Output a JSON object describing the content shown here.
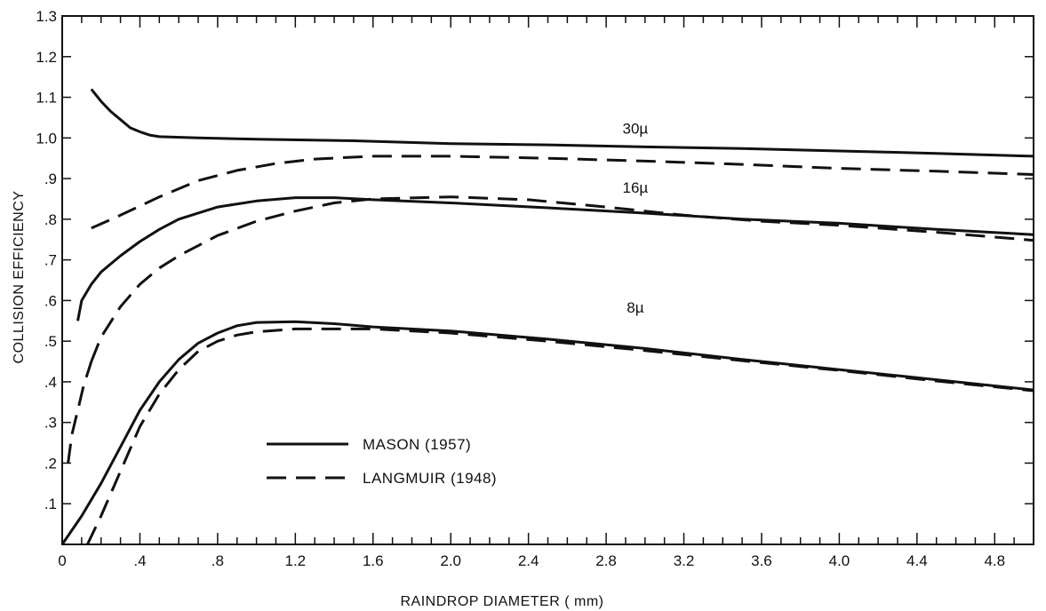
{
  "chart_data": {
    "type": "line",
    "title": "",
    "xlabel": "RAINDROP   DIAMETER  ( mm)",
    "ylabel": "COLLISION   EFFICIENCY",
    "xlim": [
      0,
      5.0
    ],
    "ylim": [
      0,
      1.3
    ],
    "x_tick_labels": [
      "0",
      ".4",
      ".8",
      "1.2",
      "1.6",
      "2.0",
      "2.4",
      "2.8",
      "3.2",
      "3.6",
      "4.0",
      "4.4",
      "4.8"
    ],
    "y_tick_labels": [
      "",
      ".1",
      ".2",
      ".3",
      ".4",
      ".5",
      ".6",
      ".7",
      ".8",
      ".9",
      "1.0",
      "1.1",
      "1.2",
      "1.3"
    ],
    "grid": false,
    "legend_position": "bottom-left",
    "legend": [
      {
        "label": "MASON  (1957)",
        "style": "solid"
      },
      {
        "label": "LANGMUIR  (1948)",
        "style": "dashed"
      }
    ],
    "series": [
      {
        "group": "30µ",
        "style": "solid",
        "points": [
          [
            0.15,
            1.12
          ],
          [
            0.2,
            1.09
          ],
          [
            0.25,
            1.065
          ],
          [
            0.3,
            1.045
          ],
          [
            0.35,
            1.025
          ],
          [
            0.4,
            1.015
          ],
          [
            0.45,
            1.007
          ],
          [
            0.5,
            1.003
          ],
          [
            0.7,
            1.0
          ],
          [
            1.0,
            0.997
          ],
          [
            1.5,
            0.993
          ],
          [
            2.0,
            0.986
          ],
          [
            2.5,
            0.983
          ],
          [
            3.0,
            0.978
          ],
          [
            3.5,
            0.974
          ],
          [
            4.0,
            0.968
          ],
          [
            4.5,
            0.962
          ],
          [
            5.0,
            0.955
          ]
        ]
      },
      {
        "group": "30µ",
        "style": "dashed",
        "points": [
          [
            0.15,
            0.778
          ],
          [
            0.3,
            0.81
          ],
          [
            0.5,
            0.855
          ],
          [
            0.7,
            0.895
          ],
          [
            0.9,
            0.92
          ],
          [
            1.1,
            0.937
          ],
          [
            1.3,
            0.948
          ],
          [
            1.6,
            0.955
          ],
          [
            2.0,
            0.955
          ],
          [
            2.5,
            0.95
          ],
          [
            3.0,
            0.943
          ],
          [
            3.5,
            0.935
          ],
          [
            4.0,
            0.925
          ],
          [
            4.5,
            0.918
          ],
          [
            5.0,
            0.91
          ]
        ]
      },
      {
        "group": "16µ",
        "style": "solid",
        "points": [
          [
            0.08,
            0.55
          ],
          [
            0.1,
            0.6
          ],
          [
            0.15,
            0.64
          ],
          [
            0.2,
            0.67
          ],
          [
            0.3,
            0.71
          ],
          [
            0.4,
            0.745
          ],
          [
            0.5,
            0.775
          ],
          [
            0.6,
            0.8
          ],
          [
            0.8,
            0.83
          ],
          [
            1.0,
            0.845
          ],
          [
            1.2,
            0.853
          ],
          [
            1.4,
            0.853
          ],
          [
            1.6,
            0.848
          ],
          [
            2.0,
            0.84
          ],
          [
            2.5,
            0.828
          ],
          [
            3.0,
            0.815
          ],
          [
            3.5,
            0.8
          ],
          [
            4.0,
            0.79
          ],
          [
            4.5,
            0.775
          ],
          [
            5.0,
            0.762
          ]
        ]
      },
      {
        "group": "16µ",
        "style": "dashed",
        "points": [
          [
            0.15,
            0.45
          ],
          [
            0.2,
            0.51
          ],
          [
            0.3,
            0.585
          ],
          [
            0.4,
            0.64
          ],
          [
            0.5,
            0.68
          ],
          [
            0.6,
            0.71
          ],
          [
            0.8,
            0.76
          ],
          [
            1.0,
            0.795
          ],
          [
            1.2,
            0.82
          ],
          [
            1.4,
            0.84
          ],
          [
            1.6,
            0.85
          ],
          [
            2.0,
            0.855
          ],
          [
            2.4,
            0.848
          ],
          [
            2.8,
            0.83
          ],
          [
            3.2,
            0.81
          ],
          [
            3.6,
            0.795
          ],
          [
            4.0,
            0.785
          ],
          [
            4.5,
            0.768
          ],
          [
            5.0,
            0.748
          ]
        ]
      },
      {
        "group": "16µ",
        "style": "dashed",
        "points": [
          [
            0.03,
            0.2
          ],
          [
            0.05,
            0.27
          ],
          [
            0.07,
            0.31
          ],
          [
            0.09,
            0.35
          ],
          [
            0.11,
            0.39
          ],
          [
            0.13,
            0.42
          ],
          [
            0.15,
            0.45
          ]
        ]
      },
      {
        "group": "8µ",
        "style": "solid",
        "points": [
          [
            0.0,
            0.0
          ],
          [
            0.1,
            0.07
          ],
          [
            0.2,
            0.15
          ],
          [
            0.3,
            0.24
          ],
          [
            0.4,
            0.33
          ],
          [
            0.5,
            0.4
          ],
          [
            0.6,
            0.455
          ],
          [
            0.7,
            0.495
          ],
          [
            0.8,
            0.52
          ],
          [
            0.9,
            0.538
          ],
          [
            1.0,
            0.546
          ],
          [
            1.2,
            0.548
          ],
          [
            1.4,
            0.543
          ],
          [
            1.6,
            0.535
          ],
          [
            2.0,
            0.525
          ],
          [
            2.5,
            0.505
          ],
          [
            3.0,
            0.482
          ],
          [
            3.5,
            0.455
          ],
          [
            4.0,
            0.43
          ],
          [
            4.5,
            0.405
          ],
          [
            5.0,
            0.38
          ]
        ]
      },
      {
        "group": "8µ",
        "style": "dashed",
        "points": [
          [
            0.13,
            0.0
          ],
          [
            0.2,
            0.07
          ],
          [
            0.3,
            0.18
          ],
          [
            0.4,
            0.29
          ],
          [
            0.5,
            0.37
          ],
          [
            0.6,
            0.43
          ],
          [
            0.7,
            0.475
          ],
          [
            0.8,
            0.5
          ],
          [
            0.9,
            0.515
          ],
          [
            1.0,
            0.523
          ],
          [
            1.2,
            0.53
          ],
          [
            1.4,
            0.53
          ],
          [
            1.6,
            0.53
          ],
          [
            2.0,
            0.52
          ],
          [
            2.5,
            0.5
          ],
          [
            3.0,
            0.477
          ],
          [
            3.5,
            0.452
          ],
          [
            4.0,
            0.428
          ],
          [
            4.5,
            0.402
          ],
          [
            5.0,
            0.378
          ]
        ]
      }
    ],
    "annotations": [
      {
        "text": "30µ",
        "x": 2.95,
        "y": 1.01
      },
      {
        "text": "16µ",
        "x": 2.95,
        "y": 0.865
      },
      {
        "text": "8µ",
        "x": 2.95,
        "y": 0.57
      }
    ]
  }
}
